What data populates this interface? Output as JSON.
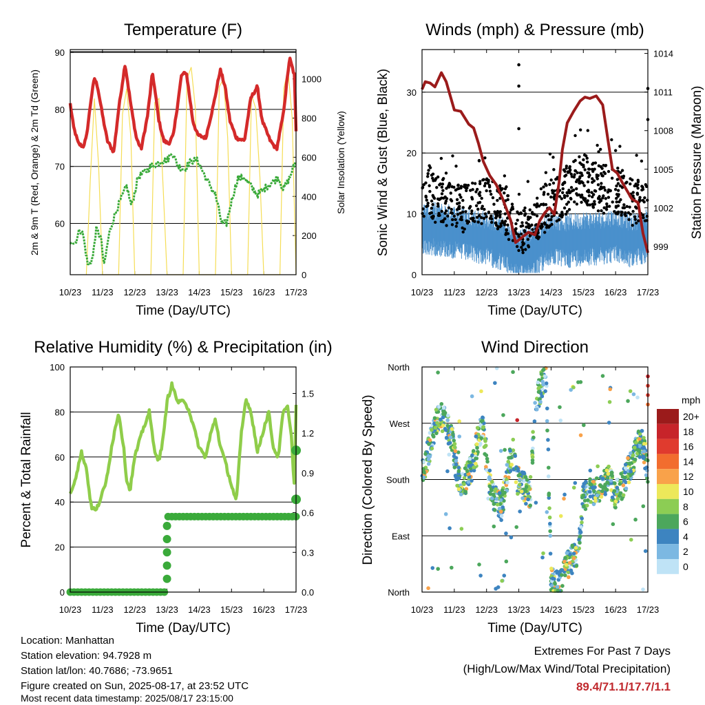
{
  "chart_data": [
    {
      "type": "line",
      "title": "Temperature (F)",
      "xlabel": "Time (Day/UTC)",
      "ylabel": "2m & 9m T (Red, Orange) & 2m Td (Green)",
      "y2label": "Solar Insolation (Yellow)",
      "x_ticks": [
        "10/23",
        "11/23",
        "12/23",
        "13/23",
        "14/23",
        "15/23",
        "16/23",
        "17/23"
      ],
      "ylim": [
        51,
        90.5
      ],
      "y_ticks": [
        60,
        70,
        80,
        90
      ],
      "y2lim": [
        0,
        1150
      ],
      "y2_ticks": [
        0,
        200,
        400,
        600,
        800,
        1000
      ],
      "grid": "horizontal",
      "series": [
        {
          "color": "#d42a2a",
          "x": [
            10,
            10.1,
            10.25,
            10.4,
            10.5,
            10.65,
            10.75,
            10.85,
            11.0,
            11.15,
            11.35,
            11.5,
            11.7,
            11.9,
            12.05,
            12.2,
            12.4,
            12.55,
            12.75,
            12.9,
            13.05,
            13.2,
            13.45,
            13.6,
            13.8,
            13.95,
            14.2,
            14.45,
            14.65,
            14.8,
            14.95,
            15.15,
            15.4,
            15.6,
            15.8,
            15.95,
            16.2,
            16.4,
            16.6,
            16.8,
            16.95,
            17.0
          ],
          "values": [
            81,
            77,
            74,
            73.5,
            75,
            82,
            85.5,
            84,
            79,
            74.5,
            72.5,
            80,
            88,
            80,
            75,
            73,
            79,
            86.5,
            78,
            74.5,
            74,
            75.5,
            86,
            86.5,
            78,
            75.5,
            75,
            81,
            87,
            84,
            78,
            75,
            74.5,
            82,
            84,
            78,
            74.5,
            73,
            79,
            89,
            86,
            76
          ]
        },
        {
          "color": "#3aaa3a",
          "x": [
            10,
            10.15,
            10.3,
            10.4,
            10.55,
            10.7,
            10.8,
            10.95,
            11.05,
            11.2,
            11.35,
            11.55,
            11.75,
            11.9,
            12.1,
            12.3,
            12.5,
            12.7,
            12.85,
            13.0,
            13.15,
            13.35,
            13.55,
            13.75,
            13.95,
            14.2,
            14.5,
            14.7,
            14.85,
            15.0,
            15.2,
            15.4,
            15.6,
            15.8,
            16.0,
            16.2,
            16.45,
            16.6,
            16.8,
            17.0
          ],
          "values": [
            57,
            56.5,
            59,
            58,
            52.5,
            54,
            59,
            57.5,
            52.5,
            58,
            61,
            64,
            66.5,
            63,
            68,
            69,
            70,
            70.5,
            71,
            71,
            72.5,
            70,
            69.5,
            71,
            71,
            68,
            65,
            60,
            60,
            64,
            68,
            68,
            66.5,
            65,
            66,
            67,
            68,
            66,
            68,
            71
          ]
        },
        {
          "color": "#f5dd55",
          "axis": "y2",
          "x": [
            10.5,
            10.62,
            10.75,
            10.88,
            11.0,
            11.5,
            11.62,
            11.75,
            11.88,
            12.0,
            12.5,
            12.62,
            12.75,
            12.88,
            13.0,
            13.5,
            13.62,
            13.75,
            13.88,
            14.0,
            14.5,
            14.62,
            14.75,
            14.88,
            15.0,
            15.5,
            15.62,
            15.75,
            15.88,
            16.0,
            16.5,
            16.62,
            16.75,
            16.88,
            17.0
          ],
          "values": [
            0,
            480,
            900,
            560,
            0,
            0,
            820,
            950,
            700,
            0,
            0,
            880,
            900,
            450,
            0,
            0,
            1000,
            1060,
            850,
            0,
            0,
            960,
            1000,
            700,
            0,
            0,
            920,
            850,
            500,
            0,
            0,
            950,
            1050,
            800,
            0
          ]
        }
      ]
    },
    {
      "type": "scatter",
      "title": "Winds (mph) & Pressure (mb)",
      "xlabel": "Time (Day/UTC)",
      "ylabel": "Sonic Wind & Gust (Blue, Black)",
      "y2label": "Station Pressure (Maroon)",
      "x_ticks": [
        "10/23",
        "11/23",
        "12/23",
        "13/23",
        "14/23",
        "15/23",
        "16/23",
        "17/23"
      ],
      "ylim": [
        0,
        37
      ],
      "y_ticks": [
        0,
        10,
        20,
        30
      ],
      "y2lim": [
        996.8,
        1014.3
      ],
      "y2_ticks": [
        999,
        1002,
        1005,
        1008,
        1011,
        1014
      ],
      "grid": "horizontal",
      "wind_envelope": {
        "x": [
          10,
          10.5,
          11,
          11.5,
          12,
          12.5,
          13,
          13.5,
          14,
          14.5,
          15,
          15.5,
          16,
          16.5,
          17
        ],
        "mean": [
          8,
          8,
          7.5,
          7,
          6.5,
          5.5,
          3.5,
          4.5,
          6.5,
          6,
          6.5,
          6.5,
          7,
          6,
          7
        ],
        "gust": [
          13,
          12.5,
          11,
          11,
          12,
          11,
          6,
          9,
          12,
          14,
          16,
          14,
          14,
          12,
          12
        ]
      },
      "series": [
        {
          "color": "#9b1b1b",
          "x": [
            10,
            10.1,
            10.25,
            10.4,
            10.6,
            10.75,
            11.0,
            11.2,
            11.45,
            11.6,
            11.75,
            11.9,
            12.1,
            12.3,
            12.5,
            12.75,
            12.9,
            13.05,
            13.3,
            13.5,
            13.65,
            13.8,
            13.95,
            14.1,
            14.25,
            14.35,
            14.5,
            14.7,
            14.9,
            15.05,
            15.2,
            15.4,
            15.6,
            15.75,
            15.9,
            16.05,
            16.2,
            16.5,
            16.7,
            16.85,
            17.0
          ],
          "values": [
            1011.2,
            1011.8,
            1011.7,
            1011.4,
            1012.5,
            1011.8,
            1009.6,
            1009.5,
            1008.5,
            1008.2,
            1007.0,
            1005.6,
            1004.5,
            1003.8,
            1002.7,
            1001.0,
            999.3,
            999.6,
            1000.1,
            999.9,
            1001.0,
            1001.6,
            1002.0,
            1001.5,
            1004.0,
            1006.5,
            1008.6,
            1009.5,
            1010.3,
            1010.6,
            1010.5,
            1010.7,
            1010.0,
            1007.5,
            1005.0,
            1004.7,
            1004.0,
            1002.7,
            1002.4,
            1000.0,
            998.5
          ]
        }
      ]
    },
    {
      "type": "line",
      "title": "Relative Humidity (%) & Precipitation (in)",
      "xlabel": "Time (Day/UTC)",
      "ylabel": "Percent & Total Rainfall",
      "x_ticks": [
        "10/23",
        "11/23",
        "12/23",
        "13/23",
        "14/23",
        "15/23",
        "16/23",
        "17/23"
      ],
      "ylim": [
        0,
        100
      ],
      "y_ticks": [
        0,
        20,
        40,
        60,
        80,
        100
      ],
      "y2lim": [
        0,
        1.7
      ],
      "y2_ticks": [
        "0.0",
        "0.3",
        "0.6",
        "0.9",
        "1.2",
        "1.5"
      ],
      "grid": "horizontal",
      "series": [
        {
          "color": "#8fcd4a",
          "x": [
            10,
            10.15,
            10.35,
            10.5,
            10.65,
            10.8,
            10.95,
            11.1,
            11.3,
            11.5,
            11.65,
            11.75,
            11.85,
            12.0,
            12.25,
            12.45,
            12.6,
            12.75,
            12.9,
            13.0,
            13.15,
            13.35,
            13.55,
            13.7,
            13.85,
            14.0,
            14.2,
            14.35,
            14.5,
            14.65,
            14.8,
            14.95,
            15.15,
            15.3,
            15.45,
            15.6,
            15.7,
            15.8,
            15.95,
            16.15,
            16.3,
            16.45,
            16.6,
            16.75,
            16.85,
            16.95,
            17.0
          ],
          "values": [
            44,
            50,
            62,
            55,
            38,
            36,
            42,
            48,
            66,
            80,
            65,
            50,
            45,
            60,
            72,
            80,
            64,
            58,
            70,
            85,
            92,
            84,
            85,
            80,
            72,
            64,
            60,
            70,
            77,
            65,
            58,
            50,
            40,
            70,
            86,
            80,
            72,
            62,
            70,
            80,
            64,
            60,
            80,
            82,
            70,
            46,
            83
          ]
        },
        {
          "color": "#3aaa3a",
          "axis": "y2",
          "x": [
            10,
            13.0,
            13.0,
            17.0,
            17.0
          ],
          "values": [
            0,
            0,
            0.57,
            0.57,
            1.07
          ]
        }
      ]
    },
    {
      "type": "scatter",
      "title": "Wind Direction",
      "xlabel": "Time (Day/UTC)",
      "ylabel": "Direction (Colored By Speed)",
      "x_ticks": [
        "10/23",
        "11/23",
        "12/23",
        "13/23",
        "14/23",
        "15/23",
        "16/23",
        "17/23"
      ],
      "y_ticks": [
        "North",
        "East",
        "South",
        "West",
        "North"
      ],
      "ylim": [
        0,
        360
      ],
      "grid": "horizontal",
      "legend_title": "mph",
      "legend_labels": [
        "20+",
        "18",
        "16",
        "14",
        "12",
        "10",
        "8",
        "6",
        "4",
        "2",
        "0"
      ],
      "legend_colors": [
        "#9b1b1b",
        "#c7242a",
        "#e03b2e",
        "#f26d2e",
        "#f9a24a",
        "#ede85a",
        "#8ccd54",
        "#4ca75c",
        "#3d84c0",
        "#7cb8e2",
        "#bfe3f6"
      ],
      "clusters": [
        {
          "x": [
            10,
            10.2,
            10.4,
            10.55,
            10.75,
            10.95,
            11.1,
            11.3,
            11.55,
            11.75,
            11.9,
            12.05,
            12.25,
            12.45,
            12.6,
            12.8,
            12.95,
            13.15,
            13.35,
            13.5,
            13.7,
            13.85,
            14.0,
            14.15,
            14.3,
            14.45,
            14.6,
            14.8,
            15.0,
            15.2,
            15.4,
            15.6,
            15.8,
            16.0,
            16.2,
            16.4,
            16.55,
            16.7,
            16.85,
            17.0
          ],
          "values": [
            185,
            225,
            265,
            285,
            270,
            240,
            180,
            175,
            200,
            250,
            270,
            180,
            150,
            135,
            175,
            230,
            180,
            170,
            150,
            300,
            330,
            345,
            20,
            10,
            15,
            40,
            50,
            60,
            150,
            165,
            160,
            170,
            180,
            155,
            170,
            195,
            210,
            240,
            235,
            195
          ]
        }
      ]
    }
  ],
  "info": {
    "location": "Location: Manhattan",
    "elevation": "Station elevation: 94.7928 m",
    "latlon": "Station lat/lon: 40.7686; -73.9651",
    "created": "Figure created on Sun, 2025-08-17, at 23:52 UTC",
    "timestamp": "Most recent data timestamp: 2025/08/17 23:15:00"
  },
  "extremes": {
    "title": "Extremes For Past 7 Days",
    "subtitle": "(High/Low/Max Wind/Total Precipitation)",
    "values": "89.4/71.1/17.7/1.1",
    "values_color": "#c0282d"
  }
}
